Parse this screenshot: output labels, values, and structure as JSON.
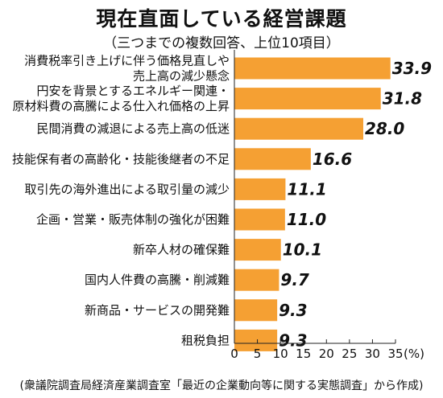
{
  "title": "現在直面している経営課題",
  "subtitle": "（三つまでの複数回答、上位10項目）",
  "source": "(衆議院調査局経済産業調査室「最近の企業動向等に関する実態調査」から作成)",
  "chart_data": {
    "type": "bar",
    "orientation": "horizontal",
    "categories": [
      [
        "消費税率引き上げに伴う価格見直しや",
        "売上高の減少懸念"
      ],
      [
        "円安を背景とするエネルギー関連・",
        "原材料費の高騰による仕入れ価格の上昇"
      ],
      [
        "民間消費の減退による売上高の低迷"
      ],
      [
        "技能保有者の高齢化・技能後継者の不足"
      ],
      [
        "取引先の海外進出による取引量の減少"
      ],
      [
        "企画・営業・販売体制の強化が困難"
      ],
      [
        "新卒人材の確保難"
      ],
      [
        "国内人件費の高騰・削減難"
      ],
      [
        "新商品・サービスの開発難"
      ],
      [
        "租税負担"
      ]
    ],
    "values": [
      33.9,
      31.8,
      28.0,
      16.6,
      11.1,
      11.0,
      10.1,
      9.7,
      9.3,
      9.3
    ],
    "value_labels": [
      "33.9",
      "31.8",
      "28.0",
      "16.6",
      "11.1",
      "11.0",
      "10.1",
      "9.7",
      "9.3",
      "9.3"
    ],
    "xlim": [
      0,
      35
    ],
    "xticks": [
      0,
      5,
      10,
      15,
      20,
      25,
      30,
      35
    ],
    "xtick_labels": [
      "0",
      "5",
      "10",
      "15",
      "20",
      "25",
      "30",
      "35"
    ],
    "unit_label": "(%)",
    "bar_color": "#F5A033",
    "grid": false,
    "legend": "none"
  }
}
